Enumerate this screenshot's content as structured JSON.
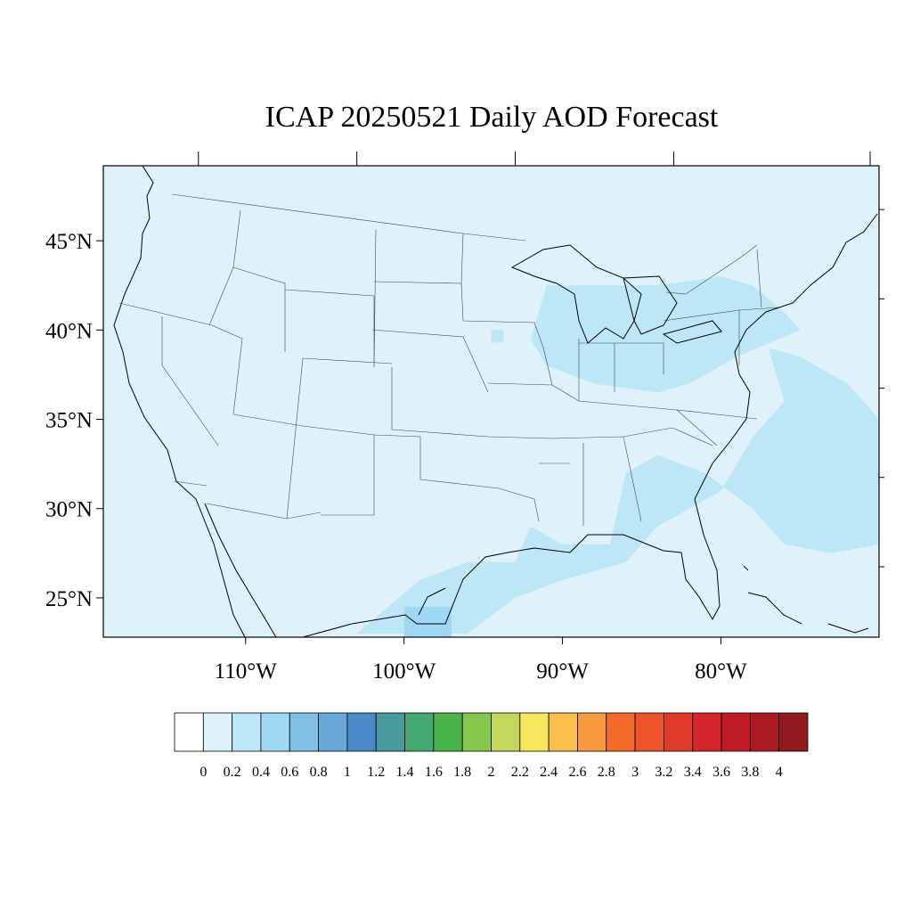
{
  "title": "ICAP 20250521 Daily AOD Forecast",
  "map": {
    "lon_range": [
      -118.98,
      -70.02
    ],
    "lat_range": [
      22.8,
      49.2
    ],
    "lat_ticks": [
      {
        "value": 45,
        "label": "45°N"
      },
      {
        "value": 40,
        "label": "40°N"
      },
      {
        "value": 35,
        "label": "35°N"
      },
      {
        "value": 30,
        "label": "30°N"
      },
      {
        "value": 25,
        "label": "25°N"
      }
    ],
    "lon_ticks": [
      {
        "value": -110,
        "label": "110°W"
      },
      {
        "value": -100,
        "label": "100°W"
      },
      {
        "value": -90,
        "label": "90°W"
      },
      {
        "value": -80,
        "label": "80°W"
      }
    ],
    "background_aod_color": "#dff2fb",
    "aod_regions": [
      {
        "aod": 0.3,
        "points": [
          [
            -91,
            42.5
          ],
          [
            -84,
            42.5
          ],
          [
            -80,
            43
          ],
          [
            -78,
            42.5
          ],
          [
            -76,
            41
          ],
          [
            -75,
            40
          ],
          [
            -79,
            38.5
          ],
          [
            -82,
            37
          ],
          [
            -84,
            36.5
          ],
          [
            -88,
            37
          ],
          [
            -91,
            38
          ],
          [
            -92,
            39.5
          ]
        ]
      },
      {
        "aod": 0.3,
        "points": [
          [
            -77,
            39
          ],
          [
            -75,
            38.5
          ],
          [
            -72,
            37
          ],
          [
            -70,
            35
          ],
          [
            -70,
            28
          ],
          [
            -73,
            27.5
          ],
          [
            -76,
            28
          ],
          [
            -78,
            30
          ],
          [
            -81,
            32
          ],
          [
            -84,
            33
          ],
          [
            -86,
            32
          ],
          [
            -87,
            28
          ],
          [
            -90,
            28
          ],
          [
            -92,
            29
          ],
          [
            -93,
            27
          ],
          [
            -96,
            27
          ],
          [
            -99,
            26
          ],
          [
            -103,
            23
          ],
          [
            -96,
            23
          ],
          [
            -93,
            25
          ],
          [
            -90,
            26
          ],
          [
            -86,
            27
          ],
          [
            -84,
            29
          ],
          [
            -80,
            31
          ],
          [
            -78,
            34
          ],
          [
            -76,
            36
          ]
        ]
      },
      {
        "aod": 0.5,
        "points": [
          [
            -100,
            24.5
          ],
          [
            -97,
            24.5
          ],
          [
            -97,
            22.8
          ],
          [
            -100,
            22.8
          ]
        ]
      },
      {
        "aod": 0.3,
        "points": [
          [
            -94.5,
            40
          ],
          [
            -93.7,
            40
          ],
          [
            -93.7,
            39.3
          ],
          [
            -94.5,
            39.3
          ]
        ]
      }
    ]
  },
  "colorbar": {
    "labels": [
      "0",
      "0.2",
      "0.4",
      "0.6",
      "0.8",
      "1",
      "1.2",
      "1.4",
      "1.6",
      "1.8",
      "2",
      "2.2",
      "2.4",
      "2.6",
      "2.8",
      "3",
      "3.2",
      "3.4",
      "3.6",
      "3.8",
      "4"
    ],
    "colors": [
      "#ffffff",
      "#dff2fb",
      "#bde7f7",
      "#9fd8f3",
      "#82bfe5",
      "#69a7d9",
      "#4a8ac8",
      "#4a999c",
      "#46a871",
      "#4ab44a",
      "#86c64d",
      "#c3d65b",
      "#f7e75d",
      "#f9be4b",
      "#f7993d",
      "#f36b2a",
      "#ec5429",
      "#e03b28",
      "#d6242d",
      "#bf1c27",
      "#ac1b24",
      "#911a1f"
    ]
  }
}
